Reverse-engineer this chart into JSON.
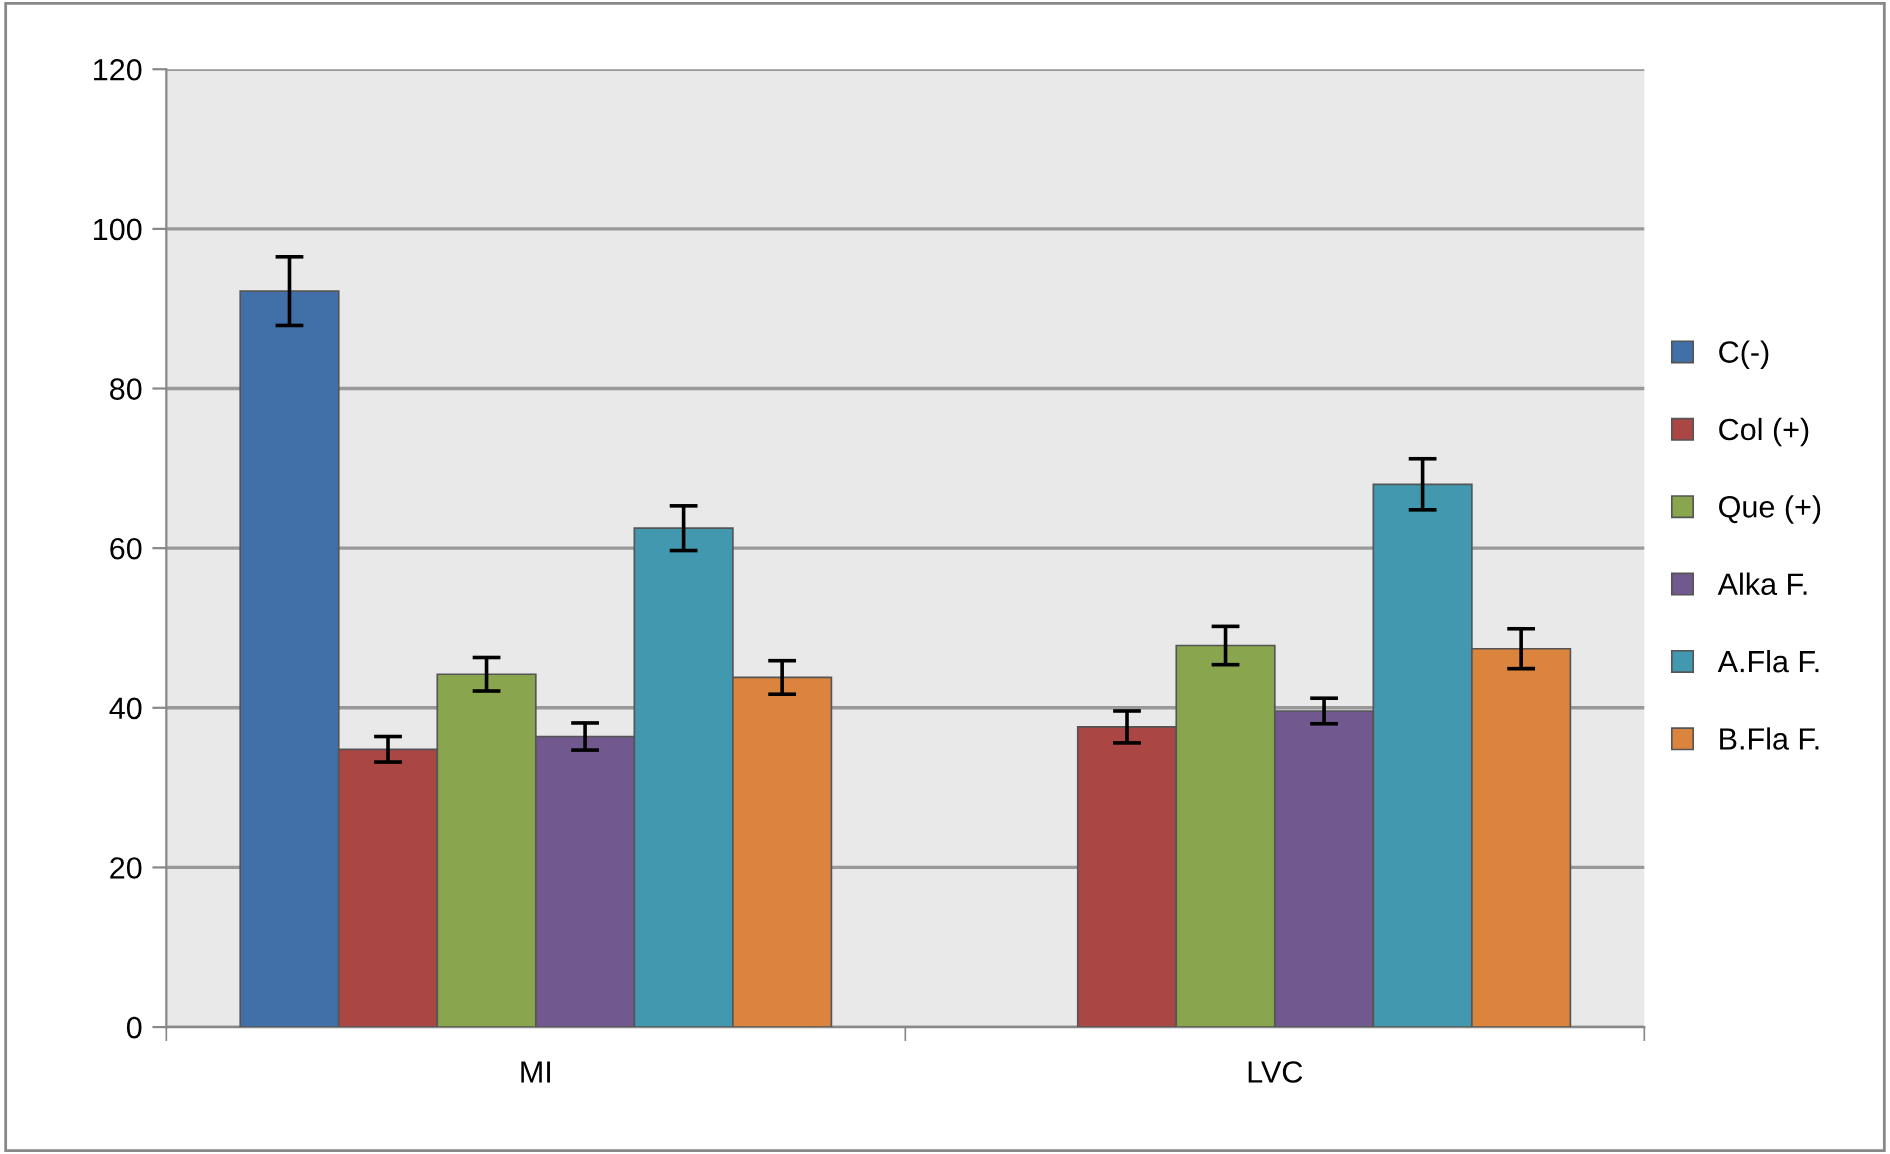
{
  "chart_data": {
    "type": "bar",
    "categories": [
      "MI",
      "LVC"
    ],
    "series": [
      {
        "name": "C(-)",
        "color": "#4170a8",
        "values": [
          92.2,
          null
        ],
        "errors": [
          4.3,
          null
        ]
      },
      {
        "name": "Col (+)",
        "color": "#aa4644",
        "values": [
          34.8,
          37.6
        ],
        "errors": [
          1.6,
          2.0
        ]
      },
      {
        "name": "Que (+)",
        "color": "#89a54e",
        "values": [
          44.2,
          47.8
        ],
        "errors": [
          2.1,
          2.4
        ]
      },
      {
        "name": "Alka F.",
        "color": "#71588f",
        "values": [
          36.4,
          39.6
        ],
        "errors": [
          1.7,
          1.6
        ]
      },
      {
        "name": "A.Fla F.",
        "color": "#4198af",
        "values": [
          62.5,
          68.0
        ],
        "errors": [
          2.8,
          3.2
        ]
      },
      {
        "name": "B.Fla F.",
        "color": "#db843d",
        "values": [
          43.8,
          47.4
        ],
        "errors": [
          2.1,
          2.5
        ]
      }
    ],
    "ylim": [
      0,
      120
    ],
    "yticks": [
      0,
      20,
      40,
      60,
      80,
      100,
      120
    ],
    "grid": "y",
    "legend": "right"
  }
}
